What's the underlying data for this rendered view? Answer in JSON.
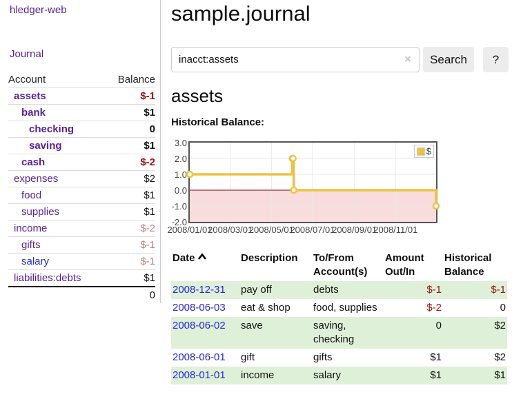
{
  "sidebar": {
    "brand": "hledger-web",
    "journal_link": "Journal",
    "headers": {
      "account": "Account",
      "balance": "Balance"
    },
    "accounts": [
      {
        "name": "assets",
        "balance": "$-1"
      },
      {
        "name": "bank",
        "balance": "$1"
      },
      {
        "name": "checking",
        "balance": "0"
      },
      {
        "name": "saving",
        "balance": "$1"
      },
      {
        "name": "cash",
        "balance": "$-2"
      },
      {
        "name": "expenses",
        "balance": "$2"
      },
      {
        "name": "food",
        "balance": "$1"
      },
      {
        "name": "supplies",
        "balance": "$1"
      },
      {
        "name": "income",
        "balance": "$-2"
      },
      {
        "name": "gifts",
        "balance": "$-1"
      },
      {
        "name": "salary",
        "balance": "$-1"
      },
      {
        "name": "liabilities:debts",
        "balance": "$1"
      }
    ],
    "total": "0"
  },
  "main": {
    "title": "sample.journal",
    "search": {
      "value": "inacct:assets",
      "clear_icon": "×",
      "button": "Search",
      "help_button": "?"
    },
    "account_heading": "assets",
    "chart_label": "Historical Balance:"
  },
  "chart_data": {
    "type": "line",
    "step": true,
    "title": "Historical Balance",
    "series": [
      {
        "name": "$",
        "color": "#edc240",
        "points": [
          [
            "2008-01-01",
            1
          ],
          [
            "2008-06-01",
            2
          ],
          [
            "2008-06-02",
            2
          ],
          [
            "2008-06-03",
            0
          ],
          [
            "2008-12-31",
            -1
          ]
        ]
      }
    ],
    "xlim": [
      "2008-01-01",
      "2008-12-31"
    ],
    "ylim": [
      -2,
      3
    ],
    "yticks": [
      "3.0",
      "2.0",
      "1.0",
      "0.0",
      "-1.0",
      "-2.0"
    ],
    "xticks": [
      "2008/01/01",
      "2008/03/01",
      "2008/05/01",
      "2008/07/01",
      "2008/09/01",
      "2008/11/01"
    ],
    "legend": {
      "label": "$",
      "position": "top-right"
    },
    "grid": true,
    "negative_region_color": "#f9dcdc",
    "zero_line_color": "#8b0000",
    "border_color": "#545454"
  },
  "transactions": {
    "headers": {
      "date": "Date",
      "description": "Description",
      "tofrom": "To/From Account(s)",
      "amount": "Amount Out/In",
      "historical": "Historical Balance"
    },
    "rows": [
      {
        "date": "2008-12-31",
        "description": "pay off",
        "accounts": "debts",
        "amount": "$-1",
        "balance": "$-1"
      },
      {
        "date": "2008-06-03",
        "description": "eat & shop",
        "accounts": "food, supplies",
        "amount": "$-2",
        "balance": "0"
      },
      {
        "date": "2008-06-02",
        "description": "save",
        "accounts": "saving, checking",
        "amount": "0",
        "balance": "$2"
      },
      {
        "date": "2008-06-01",
        "description": "gift",
        "accounts": "gifts",
        "amount": "$1",
        "balance": "$2"
      },
      {
        "date": "2008-01-01",
        "description": "income",
        "accounts": "salary",
        "amount": "$1",
        "balance": "$1"
      }
    ]
  }
}
